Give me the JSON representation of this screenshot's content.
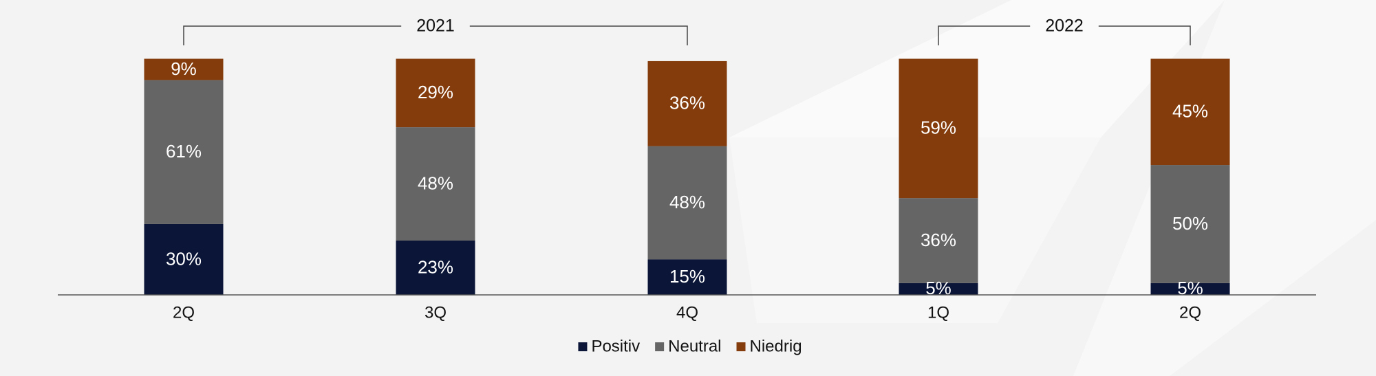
{
  "chart_data": {
    "type": "stacked-bar",
    "categories": [
      "2Q",
      "3Q",
      "4Q",
      "1Q",
      "2Q"
    ],
    "groups": [
      {
        "label": "2021",
        "count": 3
      },
      {
        "label": "2022",
        "count": 2
      }
    ],
    "series": [
      {
        "name": "Positiv",
        "color": "#0b1538",
        "values": [
          30,
          23,
          15,
          5,
          5
        ],
        "value_labels": [
          "30%",
          "23%",
          "15%",
          "5%",
          "5%"
        ]
      },
      {
        "name": "Neutral",
        "color": "#656565",
        "values": [
          61,
          48,
          48,
          36,
          50
        ],
        "value_labels": [
          "61%",
          "48%",
          "48%",
          "36%",
          "50%"
        ]
      },
      {
        "name": "Niedrig",
        "color": "#843c0c",
        "values": [
          9,
          29,
          36,
          59,
          45
        ],
        "value_labels": [
          "9%",
          "29%",
          "36%",
          "59%",
          "45%"
        ]
      }
    ]
  }
}
